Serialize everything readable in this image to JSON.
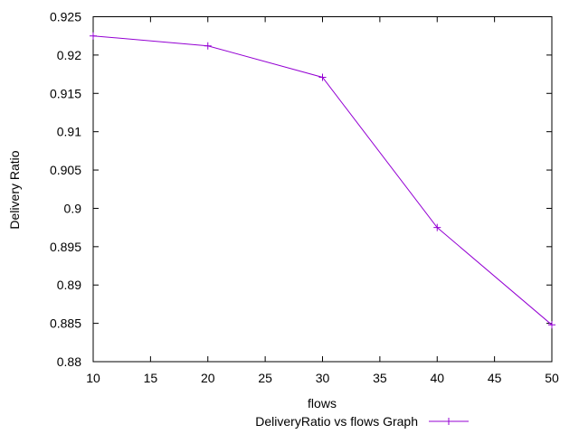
{
  "chart_data": {
    "type": "line",
    "title": "",
    "xlabel": "flows",
    "ylabel": "Delivery Ratio",
    "xlim": [
      10,
      50
    ],
    "ylim": [
      0.88,
      0.925
    ],
    "x_ticks": [
      10,
      15,
      20,
      25,
      30,
      35,
      40,
      45,
      50
    ],
    "x_tick_labels": [
      "10",
      "15",
      "20",
      "25",
      "30",
      "35",
      "40",
      "45",
      "50"
    ],
    "y_ticks": [
      0.88,
      0.885,
      0.89,
      0.895,
      0.9,
      0.905,
      0.91,
      0.915,
      0.92,
      0.925
    ],
    "y_tick_labels": [
      "0.88",
      "0.885",
      "0.89",
      "0.895",
      "0.9",
      "0.905",
      "0.91",
      "0.915",
      "0.92",
      "0.925"
    ],
    "grid": false,
    "legend_position": "bottom-center",
    "series": [
      {
        "name": "DeliveryRatio vs flows Graph",
        "color": "#9400d3",
        "marker": "plus",
        "x": [
          10,
          20,
          30,
          40,
          50
        ],
        "values": [
          0.9225,
          0.9212,
          0.9171,
          0.8975,
          0.8848
        ]
      }
    ]
  }
}
